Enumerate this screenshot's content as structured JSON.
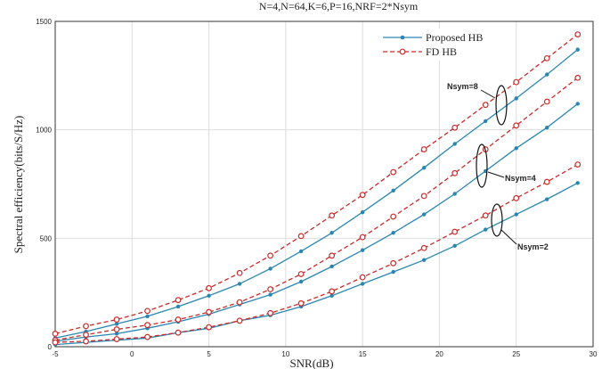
{
  "chart_data": {
    "type": "line",
    "title": "N=4,N=64,K=6,P=16,NRF=2*Nsym",
    "xlabel": "SNR(dB)",
    "ylabel": "Spectral efficiency(bits/S/Hz)",
    "xlim": [
      -5,
      30
    ],
    "ylim": [
      0,
      1500
    ],
    "xticks": [
      -5,
      0,
      5,
      10,
      15,
      20,
      25,
      30
    ],
    "yticks": [
      0,
      500,
      1000,
      1500
    ],
    "grid": true,
    "legend_position": "top-right",
    "legend": [
      {
        "label": "Proposed HB",
        "color": "#2a86b0",
        "style": "solid",
        "marker": "dot"
      },
      {
        "label": "FD HB",
        "color": "#cc2a2a",
        "style": "dashed",
        "marker": "circle"
      }
    ],
    "x": [
      -5,
      -3,
      -1,
      1,
      3,
      5,
      7,
      9,
      11,
      13,
      15,
      17,
      19,
      21,
      23,
      25,
      27,
      29
    ],
    "series": [
      {
        "group": "Nsym=8",
        "method": "Proposed HB",
        "values": [
          40,
          70,
          105,
          140,
          185,
          235,
          290,
          360,
          440,
          525,
          620,
          720,
          825,
          935,
          1040,
          1145,
          1255,
          1370
        ]
      },
      {
        "group": "Nsym=8",
        "method": "FD HB",
        "values": [
          60,
          95,
          125,
          165,
          215,
          270,
          340,
          420,
          510,
          605,
          700,
          805,
          910,
          1010,
          1115,
          1220,
          1330,
          1440
        ]
      },
      {
        "group": "Nsym=4",
        "method": "Proposed HB",
        "values": [
          25,
          45,
          60,
          85,
          115,
          150,
          195,
          240,
          300,
          370,
          445,
          525,
          610,
          705,
          810,
          915,
          1010,
          1120
        ]
      },
      {
        "group": "Nsym=4",
        "method": "FD HB",
        "values": [
          30,
          55,
          80,
          100,
          125,
          160,
          205,
          265,
          335,
          420,
          505,
          600,
          695,
          800,
          910,
          1020,
          1130,
          1240
        ]
      },
      {
        "group": "Nsym=2",
        "method": "Proposed HB",
        "values": [
          10,
          20,
          30,
          40,
          65,
          85,
          120,
          145,
          185,
          235,
          290,
          345,
          400,
          465,
          540,
          610,
          680,
          755
        ]
      },
      {
        "group": "Nsym=2",
        "method": "FD HB",
        "values": [
          20,
          25,
          35,
          45,
          65,
          90,
          120,
          155,
          200,
          255,
          320,
          385,
          455,
          530,
          605,
          685,
          760,
          840
        ]
      }
    ],
    "annotations": [
      {
        "text": "Nsym=8"
      },
      {
        "text": "Nsym=4"
      },
      {
        "text": "Nsym=2"
      }
    ]
  }
}
